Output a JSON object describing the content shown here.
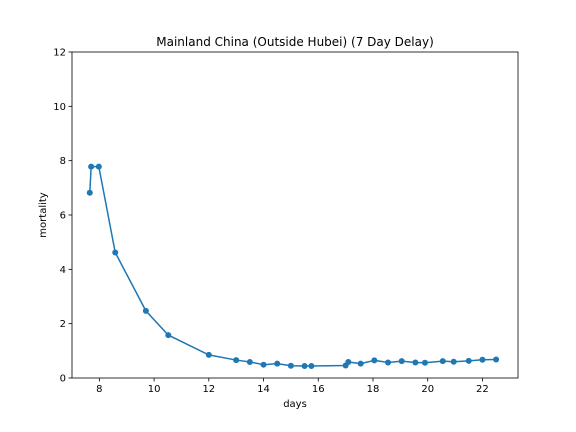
{
  "chart_data": {
    "type": "line",
    "title": "Mainland China (Outside Hubei) (7 Day Delay)",
    "xlabel": "days",
    "ylabel": "mortality",
    "xlim": [
      7.0,
      23.3
    ],
    "ylim": [
      0,
      12
    ],
    "xticks": [
      8,
      10,
      12,
      14,
      16,
      18,
      20,
      22
    ],
    "yticks": [
      0,
      2,
      4,
      6,
      8,
      10,
      12
    ],
    "grid": false,
    "color": "#1f77b4",
    "series": [
      {
        "x": [
          7.65,
          7.7,
          7.98,
          8.58,
          9.7,
          10.52,
          12.0,
          13.0,
          13.5,
          14.0,
          14.5,
          15.0,
          15.5,
          15.75,
          17.0,
          17.1,
          17.55,
          18.05,
          18.55,
          19.05,
          19.55,
          19.9,
          20.55,
          20.95,
          21.5,
          22.0,
          22.5
        ],
        "y": [
          6.82,
          7.78,
          7.78,
          4.62,
          2.47,
          1.58,
          0.85,
          0.66,
          0.59,
          0.49,
          0.53,
          0.45,
          0.44,
          0.44,
          0.46,
          0.59,
          0.53,
          0.65,
          0.57,
          0.62,
          0.57,
          0.56,
          0.62,
          0.6,
          0.63,
          0.67,
          0.68
        ]
      }
    ]
  }
}
